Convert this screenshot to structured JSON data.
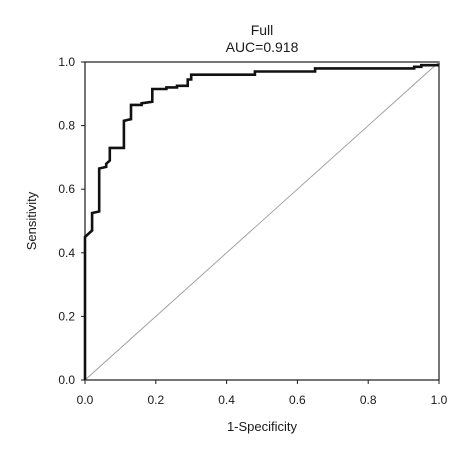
{
  "chart_data": {
    "type": "line",
    "title": "Full",
    "subtitle": "AUC=0.918",
    "xlabel": "1-Specificity",
    "ylabel": "Sensitivity",
    "xlim": [
      0,
      1
    ],
    "ylim": [
      0,
      1
    ],
    "xticks": [
      "0.0",
      "0.2",
      "0.4",
      "0.6",
      "0.8",
      "1.0"
    ],
    "yticks": [
      "0.0",
      "0.2",
      "0.4",
      "0.6",
      "0.8",
      "1.0"
    ],
    "grid": false,
    "series": [
      {
        "role": "roc",
        "color": "#111111",
        "x": [
          0.0,
          0.0,
          0.02,
          0.02,
          0.04,
          0.04,
          0.06,
          0.06,
          0.07,
          0.07,
          0.11,
          0.11,
          0.13,
          0.13,
          0.16,
          0.16,
          0.19,
          0.19,
          0.23,
          0.23,
          0.26,
          0.26,
          0.29,
          0.29,
          0.3,
          0.3,
          0.48,
          0.48,
          0.65,
          0.65,
          0.93,
          0.93,
          0.95,
          0.95,
          1.0
        ],
        "y": [
          0.0,
          0.45,
          0.47,
          0.525,
          0.53,
          0.665,
          0.67,
          0.68,
          0.69,
          0.73,
          0.73,
          0.815,
          0.82,
          0.865,
          0.865,
          0.87,
          0.875,
          0.915,
          0.915,
          0.92,
          0.92,
          0.925,
          0.925,
          0.945,
          0.945,
          0.96,
          0.96,
          0.97,
          0.97,
          0.98,
          0.98,
          0.985,
          0.985,
          0.99,
          0.99
        ]
      },
      {
        "role": "reference-diagonal",
        "color": "#9a9a9a",
        "x": [
          0,
          1
        ],
        "y": [
          0,
          1
        ]
      }
    ]
  }
}
